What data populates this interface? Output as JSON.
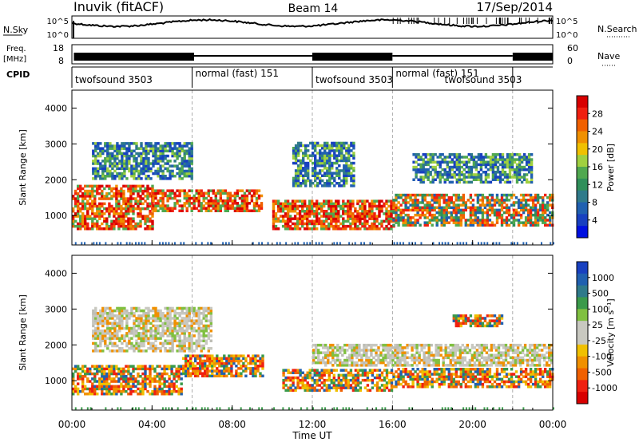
{
  "header": {
    "site": "Inuvik (fitACF)",
    "beam": "Beam 14",
    "date": "17/Sep/2014"
  },
  "time_axis": {
    "ticks": [
      "00:00",
      "04:00",
      "08:00",
      "12:00",
      "16:00",
      "20:00",
      "00:00"
    ],
    "label": "Time UT",
    "range_hours": [
      0,
      24
    ]
  },
  "noise_panel": {
    "left_label": "N.Sky",
    "right_label": "N.Search",
    "left_ticks": [
      "10^5",
      "10^0"
    ],
    "right_ticks": [
      "10^5",
      "10^0"
    ]
  },
  "freq_panel": {
    "left_label_top": "Freq.",
    "left_label_bottom": "[MHz]",
    "left_ticks": [
      "18",
      "8"
    ],
    "right_label": "Nave",
    "right_ticks": [
      "60",
      "0"
    ]
  },
  "cpid_panel": {
    "label": "CPID",
    "segments": [
      {
        "start": 0,
        "end": 6,
        "mode": "twofsound",
        "cpid": "3503"
      },
      {
        "start": 6,
        "end": 12,
        "mode": "normal (fast)",
        "cpid": "151"
      },
      {
        "start": 12,
        "end": 16,
        "mode": "twofsound",
        "cpid": "3503"
      },
      {
        "start": 16,
        "end": 22,
        "mode": "normal (fast)",
        "cpid": "151"
      },
      {
        "start": 22,
        "end": 24,
        "mode": "",
        "cpid": ""
      }
    ],
    "extra_label": {
      "mode": "twofsound",
      "cpid": "3503"
    }
  },
  "power_panel": {
    "ylabel": "Slant Range [km]",
    "yticks": [
      1000,
      2000,
      3000,
      4000
    ],
    "yrange": [
      180,
      4500
    ],
    "colorbar_label": "Power [dB]",
    "colorbar_ticks": [
      "28",
      "24",
      "20",
      "16",
      "12",
      "8",
      "4"
    ],
    "colorbar_colors": [
      "#d80000",
      "#f02010",
      "#f06000",
      "#f09000",
      "#f0c000",
      "#a0d040",
      "#50a850",
      "#2f8f5a",
      "#2f7a8a",
      "#2060b0",
      "#1840c0",
      "#0010e0"
    ]
  },
  "velocity_panel": {
    "ylabel": "Slant Range [km]",
    "yticks": [
      1000,
      2000,
      3000,
      4000
    ],
    "yrange": [
      180,
      4500
    ],
    "colorbar_label": "Velocity [m s⁻¹]",
    "colorbar_ticks": [
      "1000",
      "500",
      "100",
      "25",
      "-25",
      "-100",
      "-500",
      "-1000"
    ],
    "colorbar_colors": [
      "#1840c0",
      "#2060b0",
      "#2f7a8a",
      "#3a9a4a",
      "#80c040",
      "#c8c8c0",
      "#c8c8c0",
      "#f0c000",
      "#f09000",
      "#f06000",
      "#f02010",
      "#d80000"
    ]
  },
  "chart_data": {
    "type": "heatmap",
    "x_unit": "hours UT",
    "y_unit": "km",
    "power_bands": [
      {
        "t0": 0.0,
        "t1": 4.0,
        "r0": 600,
        "r1": 1800,
        "level": "high"
      },
      {
        "t0": 4.0,
        "t1": 9.5,
        "r0": 1100,
        "r1": 1700,
        "level": "high"
      },
      {
        "t0": 10.0,
        "t1": 16.0,
        "r0": 600,
        "r1": 1400,
        "level": "high"
      },
      {
        "t0": 16.0,
        "t1": 24.0,
        "r0": 700,
        "r1": 1600,
        "level": "medium"
      },
      {
        "t0": 1.0,
        "t1": 6.0,
        "r0": 2000,
        "r1": 3000,
        "level": "low"
      },
      {
        "t0": 11.0,
        "t1": 14.0,
        "r0": 1800,
        "r1": 3000,
        "level": "low"
      },
      {
        "t0": 17.0,
        "t1": 23.0,
        "r0": 1900,
        "r1": 2700,
        "level": "low"
      }
    ],
    "velocity_bands": [
      {
        "t0": 0.0,
        "t1": 5.5,
        "r0": 600,
        "r1": 1400,
        "level": "negative"
      },
      {
        "t0": 1.0,
        "t1": 7.0,
        "r0": 1800,
        "r1": 3000,
        "level": "near-zero"
      },
      {
        "t0": 5.5,
        "t1": 9.5,
        "r0": 1100,
        "r1": 1700,
        "level": "negative"
      },
      {
        "t0": 10.5,
        "t1": 16.0,
        "r0": 700,
        "r1": 1300,
        "level": "negative"
      },
      {
        "t0": 12.0,
        "t1": 24.0,
        "r0": 1400,
        "r1": 2000,
        "level": "near-zero"
      },
      {
        "t0": 16.0,
        "t1": 24.0,
        "r0": 800,
        "r1": 1300,
        "level": "negative"
      },
      {
        "t0": 19.0,
        "t1": 21.5,
        "r0": 2500,
        "r1": 2800,
        "level": "negative"
      }
    ]
  }
}
